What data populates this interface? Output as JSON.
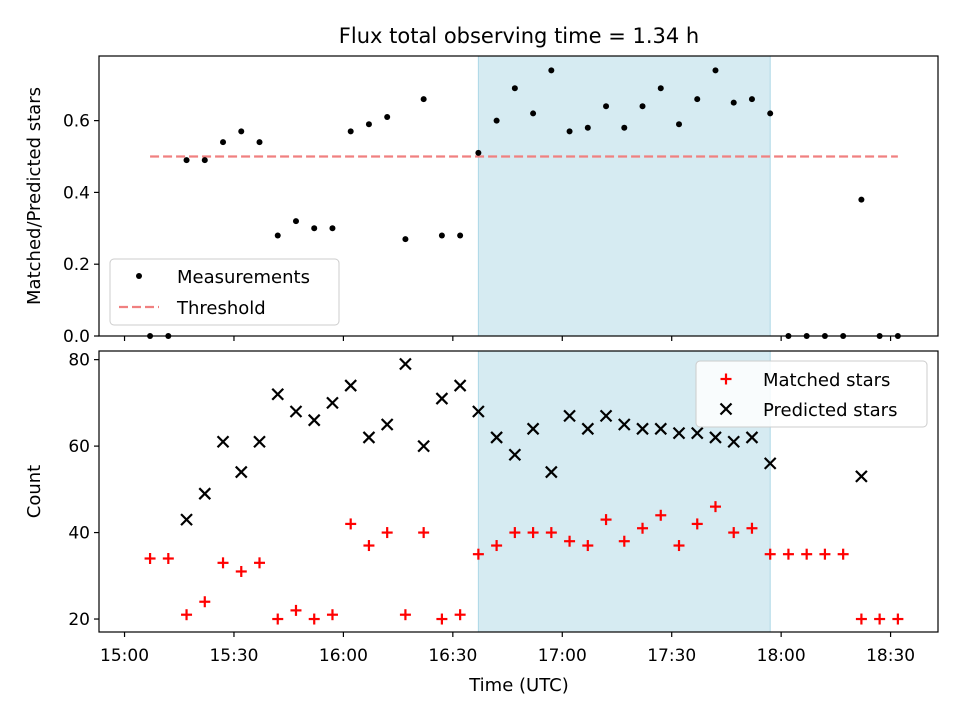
{
  "figure": {
    "title": "Flux total observing time = 1.34 h",
    "xlabel": "Time (UTC)"
  },
  "colors": {
    "measurement": "#000000",
    "threshold": "#f08080",
    "matched": "#ff0000",
    "predicted": "#000000",
    "shade": "#add8e6"
  },
  "legend_top": {
    "measurements": "Measurements",
    "threshold": "Threshold"
  },
  "legend_bottom": {
    "matched": "Matched stars",
    "predicted": "Predicted stars"
  },
  "chart_data": [
    {
      "type": "scatter",
      "panel": "top",
      "title": "Flux total observing time = 1.34 h",
      "xlabel": "",
      "ylabel": "Matched/Predicted stars",
      "xlim": [
        "14:53",
        "18:43"
      ],
      "ylim": [
        0,
        0.78
      ],
      "x_ticks": [
        "15:00",
        "15:30",
        "16:00",
        "16:30",
        "17:00",
        "17:30",
        "18:00",
        "18:30"
      ],
      "y_ticks": [
        0.0,
        0.2,
        0.4,
        0.6
      ],
      "y_tick_labels": [
        "0.0",
        "0.2",
        "0.4",
        "0.6"
      ],
      "shaded_span": [
        "16:37",
        "17:57"
      ],
      "legend_position": "lower-left",
      "threshold": {
        "name": "Threshold",
        "y": 0.5,
        "x_range": [
          "15:07",
          "18:32"
        ],
        "style": "dashed"
      },
      "series": [
        {
          "name": "Measurements",
          "marker": "dot",
          "x": [
            "15:07",
            "15:12",
            "15:17",
            "15:22",
            "15:27",
            "15:32",
            "15:37",
            "15:42",
            "15:47",
            "15:52",
            "15:57",
            "16:02",
            "16:07",
            "16:12",
            "16:17",
            "16:22",
            "16:27",
            "16:32",
            "16:37",
            "16:42",
            "16:47",
            "16:52",
            "16:57",
            "17:02",
            "17:07",
            "17:12",
            "17:17",
            "17:22",
            "17:27",
            "17:32",
            "17:37",
            "17:42",
            "17:47",
            "17:52",
            "17:57",
            "18:02",
            "18:07",
            "18:12",
            "18:17",
            "18:22",
            "18:27",
            "18:32"
          ],
          "y": [
            0.0,
            0.0,
            0.49,
            0.49,
            0.54,
            0.57,
            0.54,
            0.28,
            0.32,
            0.3,
            0.3,
            0.57,
            0.59,
            0.61,
            0.27,
            0.66,
            0.28,
            0.28,
            0.51,
            0.6,
            0.69,
            0.62,
            0.74,
            0.57,
            0.58,
            0.64,
            0.58,
            0.64,
            0.69,
            0.59,
            0.66,
            0.74,
            0.65,
            0.66,
            0.62,
            0.0,
            0.0,
            0.0,
            0.0,
            0.38,
            0.0,
            0.0
          ]
        }
      ]
    },
    {
      "type": "scatter",
      "panel": "bottom",
      "title": "",
      "xlabel": "Time (UTC)",
      "ylabel": "Count",
      "xlim": [
        "14:53",
        "18:43"
      ],
      "ylim": [
        17,
        82
      ],
      "x_ticks": [
        "15:00",
        "15:30",
        "16:00",
        "16:30",
        "17:00",
        "17:30",
        "18:00",
        "18:30"
      ],
      "y_ticks": [
        20,
        40,
        60,
        80
      ],
      "y_tick_labels": [
        "20",
        "40",
        "60",
        "80"
      ],
      "shaded_span": [
        "16:37",
        "17:57"
      ],
      "legend_position": "top-right",
      "series": [
        {
          "name": "Matched stars",
          "marker": "plus",
          "x": [
            "15:07",
            "15:12",
            "15:17",
            "15:22",
            "15:27",
            "15:32",
            "15:37",
            "15:42",
            "15:47",
            "15:52",
            "15:57",
            "16:02",
            "16:07",
            "16:12",
            "16:17",
            "16:22",
            "16:27",
            "16:32",
            "16:37",
            "16:42",
            "16:47",
            "16:52",
            "16:57",
            "17:02",
            "17:07",
            "17:12",
            "17:17",
            "17:22",
            "17:27",
            "17:32",
            "17:37",
            "17:42",
            "17:47",
            "17:52",
            "17:57",
            "18:02",
            "18:07",
            "18:12",
            "18:17",
            "18:22",
            "18:27",
            "18:32"
          ],
          "y": [
            34,
            34,
            21,
            24,
            33,
            31,
            33,
            20,
            22,
            20,
            21,
            42,
            37,
            40,
            21,
            40,
            20,
            21,
            35,
            37,
            40,
            40,
            40,
            38,
            37,
            43,
            38,
            41,
            44,
            37,
            42,
            46,
            40,
            41,
            35,
            35,
            35,
            35,
            35,
            20,
            20,
            20
          ]
        },
        {
          "name": "Predicted stars",
          "marker": "x",
          "x": [
            "15:17",
            "15:22",
            "15:27",
            "15:32",
            "15:37",
            "15:42",
            "15:47",
            "15:52",
            "15:57",
            "16:02",
            "16:07",
            "16:12",
            "16:17",
            "16:22",
            "16:27",
            "16:32",
            "16:37",
            "16:42",
            "16:47",
            "16:52",
            "16:57",
            "17:02",
            "17:07",
            "17:12",
            "17:17",
            "17:22",
            "17:27",
            "17:32",
            "17:37",
            "17:42",
            "17:47",
            "17:52",
            "17:57",
            "18:22"
          ],
          "y": [
            43,
            49,
            61,
            54,
            61,
            72,
            68,
            66,
            70,
            74,
            62,
            65,
            79,
            60,
            71,
            74,
            68,
            62,
            58,
            64,
            54,
            67,
            64,
            67,
            65,
            64,
            64,
            63,
            63,
            62,
            61,
            62,
            56,
            53
          ]
        }
      ]
    }
  ]
}
